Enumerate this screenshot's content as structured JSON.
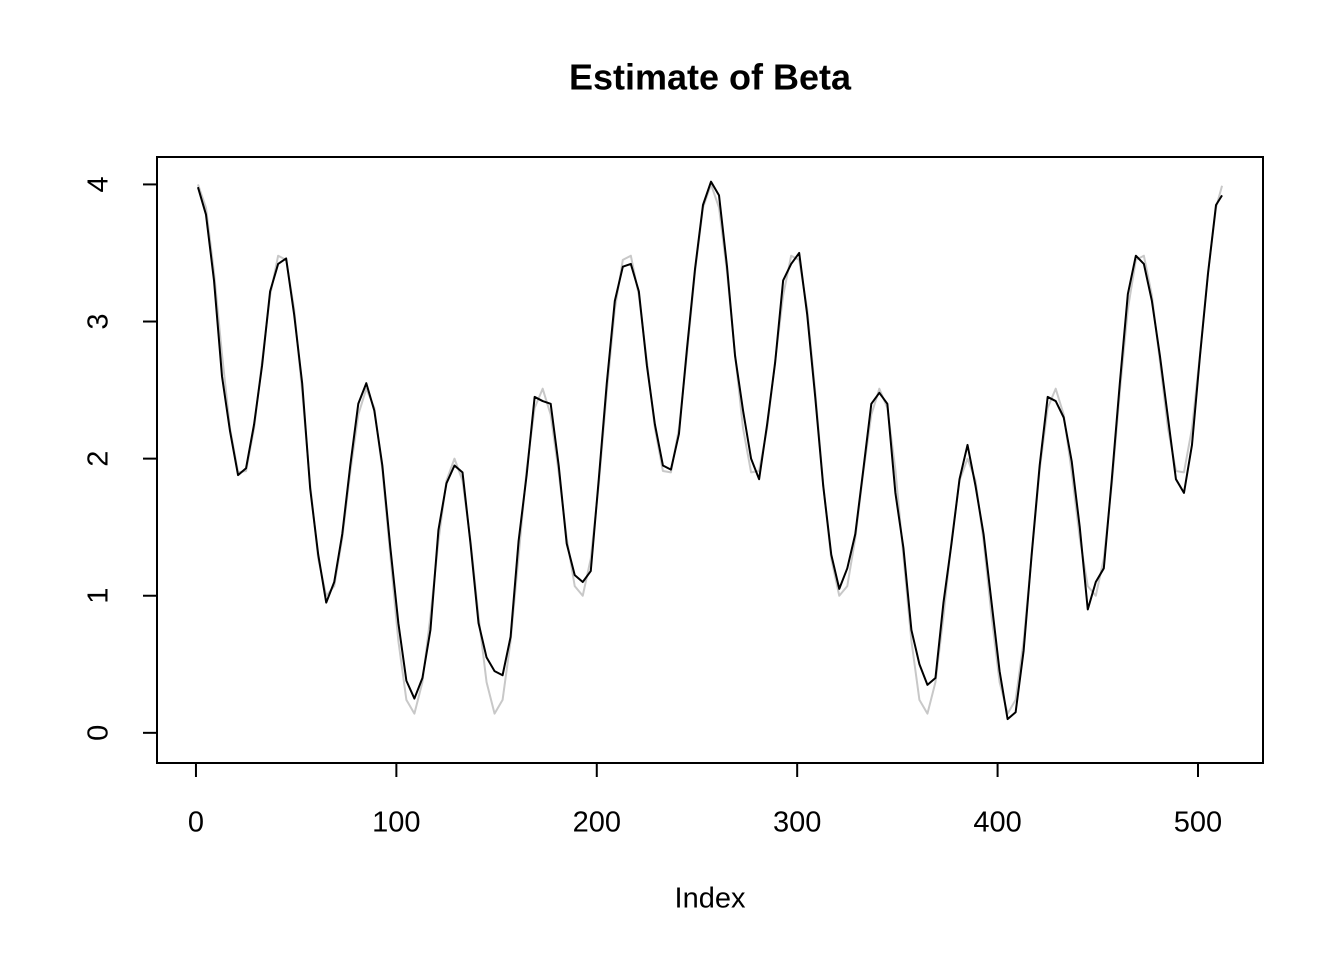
{
  "chart_data": {
    "type": "line",
    "title": "Estimate of Beta",
    "xlabel": "Index",
    "xlim": [
      -19.44,
      532.44
    ],
    "ylim": [
      -0.22,
      4.2
    ],
    "xticks": [
      0,
      100,
      200,
      300,
      400,
      500
    ],
    "yticks": [
      0,
      1,
      2,
      3,
      4
    ],
    "x": [
      1,
      5,
      9,
      13,
      17,
      21,
      25,
      29,
      33,
      37,
      41,
      45,
      49,
      53,
      57,
      61,
      65,
      69,
      73,
      77,
      81,
      85,
      89,
      93,
      97,
      101,
      105,
      109,
      113,
      117,
      121,
      125,
      129,
      133,
      137,
      141,
      145,
      149,
      153,
      157,
      161,
      165,
      169,
      173,
      177,
      181,
      185,
      189,
      193,
      197,
      201,
      205,
      209,
      213,
      217,
      221,
      225,
      229,
      233,
      237,
      241,
      245,
      249,
      253,
      257,
      261,
      265,
      269,
      273,
      277,
      281,
      285,
      289,
      293,
      297,
      301,
      305,
      309,
      313,
      317,
      321,
      325,
      329,
      333,
      337,
      341,
      345,
      349,
      353,
      357,
      361,
      365,
      369,
      373,
      377,
      381,
      385,
      389,
      393,
      397,
      401,
      405,
      409,
      413,
      417,
      421,
      425,
      429,
      433,
      437,
      441,
      445,
      449,
      453,
      457,
      461,
      465,
      469,
      473,
      477,
      481,
      485,
      489,
      493,
      497,
      501,
      505,
      509,
      512
    ],
    "series": [
      {
        "color": "#c8c8c8",
        "values": [
          4.0,
          3.83,
          3.36,
          2.76,
          2.22,
          1.9,
          1.91,
          2.22,
          2.71,
          3.19,
          3.48,
          3.45,
          3.09,
          2.49,
          1.81,
          1.27,
          1.0,
          1.07,
          1.42,
          1.9,
          2.32,
          2.51,
          2.37,
          1.92,
          1.29,
          0.67,
          0.24,
          0.14,
          0.37,
          0.85,
          1.4,
          1.84,
          2.0,
          1.84,
          1.4,
          0.85,
          0.37,
          0.14,
          0.24,
          0.67,
          1.29,
          1.92,
          2.37,
          2.51,
          2.32,
          1.9,
          1.42,
          1.07,
          1.0,
          1.27,
          1.81,
          2.49,
          3.09,
          3.45,
          3.48,
          3.19,
          2.71,
          2.22,
          1.91,
          1.9,
          2.22,
          2.76,
          3.36,
          3.83,
          4.0,
          3.83,
          3.36,
          2.76,
          2.22,
          1.9,
          1.91,
          2.22,
          2.71,
          3.19,
          3.48,
          3.45,
          3.09,
          2.49,
          1.81,
          1.27,
          1.0,
          1.07,
          1.42,
          1.9,
          2.32,
          2.51,
          2.37,
          1.92,
          1.29,
          0.67,
          0.24,
          0.14,
          0.37,
          0.85,
          1.4,
          1.84,
          2.0,
          1.84,
          1.4,
          0.85,
          0.37,
          0.14,
          0.24,
          0.67,
          1.29,
          1.92,
          2.37,
          2.51,
          2.32,
          1.9,
          1.42,
          1.07,
          1.0,
          1.27,
          1.81,
          2.49,
          3.09,
          3.45,
          3.48,
          3.19,
          2.71,
          2.22,
          1.91,
          1.9,
          2.22,
          2.76,
          3.36,
          3.83,
          3.99
        ]
      },
      {
        "color": "#000000",
        "values": [
          3.98,
          3.78,
          3.3,
          2.6,
          2.2,
          1.88,
          1.93,
          2.25,
          2.68,
          3.22,
          3.42,
          3.46,
          3.05,
          2.55,
          1.78,
          1.3,
          0.95,
          1.1,
          1.45,
          1.95,
          2.4,
          2.55,
          2.35,
          1.95,
          1.35,
          0.8,
          0.38,
          0.25,
          0.4,
          0.75,
          1.48,
          1.82,
          1.95,
          1.9,
          1.38,
          0.8,
          0.55,
          0.45,
          0.42,
          0.7,
          1.4,
          1.88,
          2.45,
          2.42,
          2.4,
          1.95,
          1.38,
          1.15,
          1.1,
          1.18,
          1.85,
          2.55,
          3.15,
          3.4,
          3.42,
          3.22,
          2.68,
          2.25,
          1.95,
          1.92,
          2.18,
          2.8,
          3.38,
          3.85,
          4.02,
          3.92,
          3.4,
          2.75,
          2.35,
          2.0,
          1.85,
          2.25,
          2.7,
          3.3,
          3.42,
          3.5,
          3.05,
          2.45,
          1.8,
          1.3,
          1.05,
          1.2,
          1.45,
          1.92,
          2.4,
          2.48,
          2.4,
          1.75,
          1.35,
          0.75,
          0.5,
          0.35,
          0.4,
          0.95,
          1.38,
          1.85,
          2.1,
          1.8,
          1.45,
          0.95,
          0.45,
          0.1,
          0.15,
          0.6,
          1.3,
          1.95,
          2.45,
          2.42,
          2.3,
          1.98,
          1.5,
          0.9,
          1.1,
          1.2,
          1.85,
          2.55,
          3.2,
          3.48,
          3.42,
          3.15,
          2.75,
          2.3,
          1.85,
          1.75,
          2.1,
          2.75,
          3.35,
          3.85,
          3.92
        ]
      }
    ]
  }
}
